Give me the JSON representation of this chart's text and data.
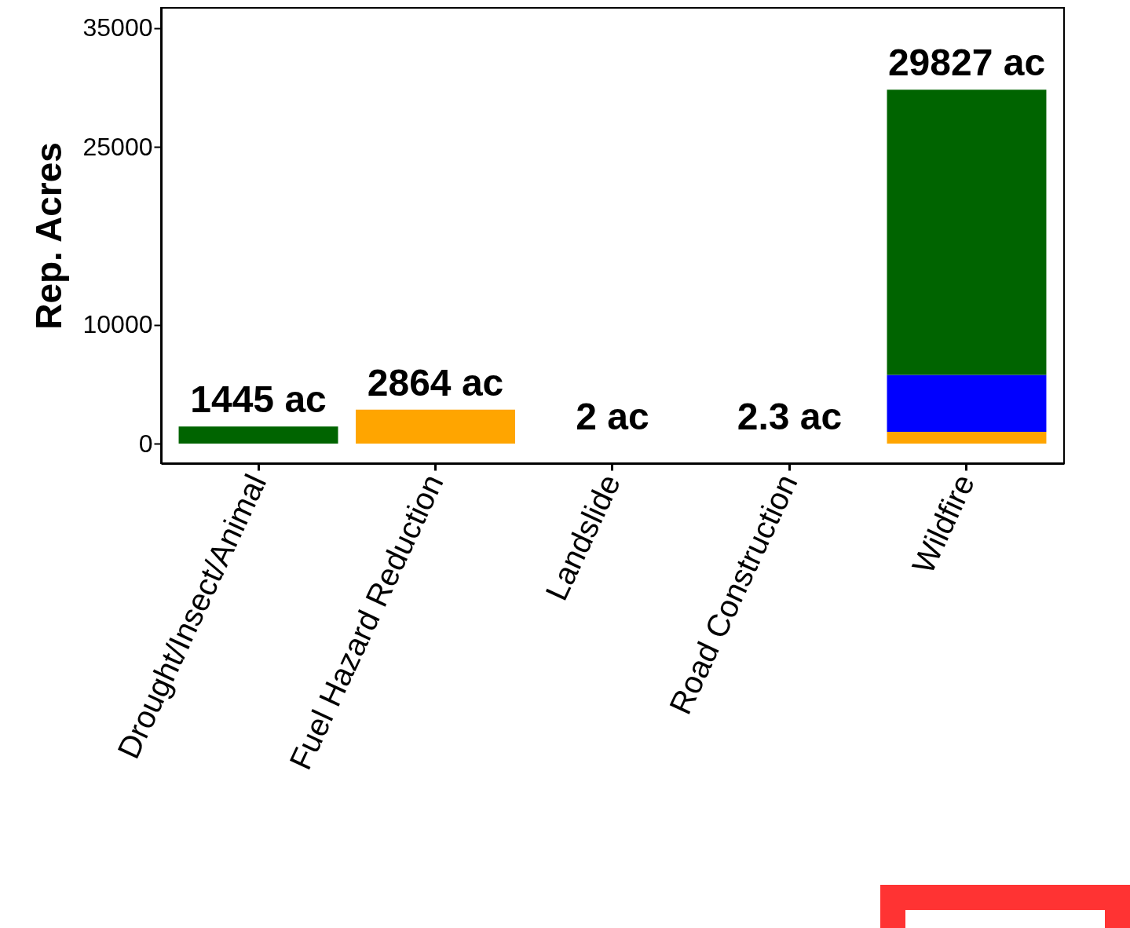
{
  "chart_data": {
    "type": "bar",
    "stacked": true,
    "ylabel": "Rep. Acres",
    "categories": [
      "Drought/Insect/Animal",
      "Fuel Hazard Reduction",
      "Landslide",
      "Road Construction",
      "Wildfire"
    ],
    "series": [
      {
        "color": "#ffa500",
        "values": [
          null,
          2864,
          null,
          null,
          1000
        ]
      },
      {
        "color": "#0000ff",
        "values": [
          null,
          null,
          null,
          null,
          4800
        ]
      },
      {
        "color": "#006400",
        "values": [
          1445,
          null,
          2,
          2.3,
          24027
        ]
      }
    ],
    "totals": [
      "1445 ac",
      "2864 ac",
      "2 ac",
      "2.3 ac",
      "29827 ac"
    ],
    "ylim": [
      -1650,
      36720
    ],
    "yticks": [
      0,
      10000,
      25000,
      35000
    ],
    "grid": false,
    "legend": false
  }
}
